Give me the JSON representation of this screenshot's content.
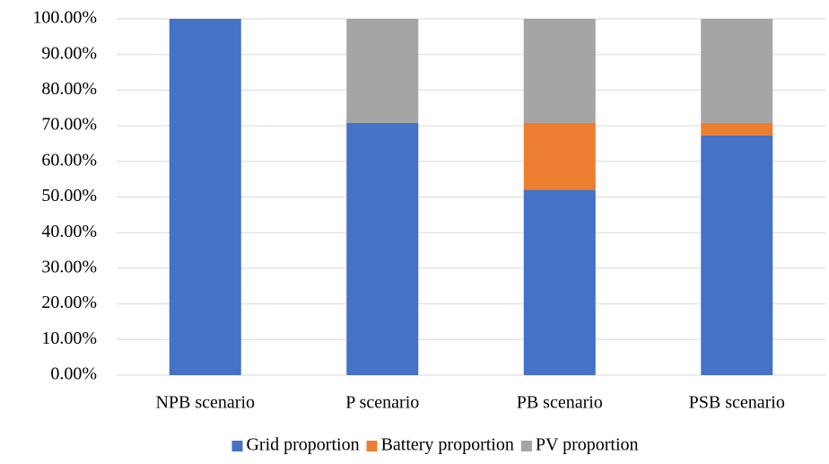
{
  "chart_data": {
    "type": "stacked_bar",
    "categories": [
      "NPB scenario",
      "P scenario",
      "PB scenario",
      "PSB scenario"
    ],
    "series": [
      {
        "name": "Grid proportion",
        "color": "#4472c4",
        "values": [
          100,
          70.8,
          52,
          67.3
        ]
      },
      {
        "name": "Battery proportion",
        "color": "#ed7d31",
        "values": [
          0,
          0,
          18.8,
          3.5
        ]
      },
      {
        "name": "PV proportion",
        "color": "#a5a5a5",
        "values": [
          0,
          29.2,
          29.2,
          29.2
        ]
      }
    ],
    "ylim": [
      0,
      100
    ],
    "yticks": [
      {
        "value": 0,
        "label": "0.00%"
      },
      {
        "value": 10,
        "label": "10.00%"
      },
      {
        "value": 20,
        "label": "20.00%"
      },
      {
        "value": 30,
        "label": "30.00%"
      },
      {
        "value": 40,
        "label": "40.00%"
      },
      {
        "value": 50,
        "label": "50.00%"
      },
      {
        "value": 60,
        "label": "60.00%"
      },
      {
        "value": 70,
        "label": "70.00%"
      },
      {
        "value": 80,
        "label": "80.00%"
      },
      {
        "value": 90,
        "label": "90.00%"
      },
      {
        "value": 100,
        "label": "100.00%"
      }
    ],
    "grid": true,
    "legend": "bottom"
  }
}
